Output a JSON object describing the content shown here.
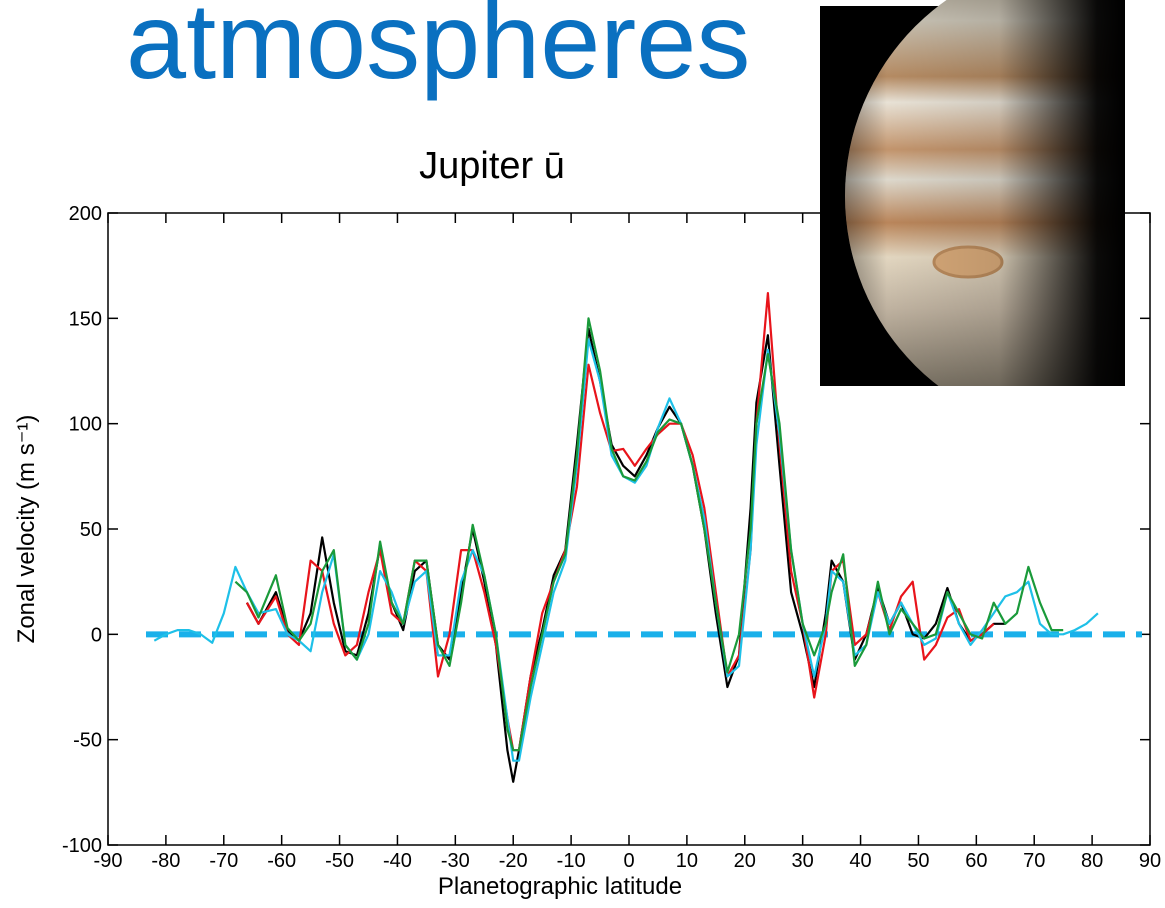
{
  "slide_title": "atmospheres",
  "chart_data": {
    "type": "line",
    "title": "Jupiter ū",
    "x_label": "Planetographic latitude",
    "y_label": "Zonal velocity (m s⁻¹)",
    "x": [
      -82,
      -80,
      -78,
      -76,
      -74,
      -72,
      -70,
      -68,
      -66,
      -64,
      -61,
      -59,
      -57,
      -55,
      -53,
      -51,
      -49,
      -47,
      -45,
      -43,
      -41,
      -39,
      -37,
      -35,
      -33,
      -31,
      -29,
      -27,
      -25,
      -23,
      -21,
      -20,
      -19,
      -17,
      -15,
      -13,
      -11,
      -9,
      -7,
      -5,
      -3,
      -1,
      1,
      3,
      5,
      7,
      9,
      11,
      13,
      15,
      17,
      19,
      21,
      22,
      24,
      26,
      28,
      30,
      32,
      34,
      35,
      37,
      39,
      41,
      43,
      45,
      47,
      49,
      51,
      53,
      55,
      57,
      59,
      61,
      63,
      65,
      67,
      69,
      71,
      73,
      75,
      77,
      79,
      81
    ],
    "series": [
      {
        "color": "#000000",
        "values": [
          null,
          null,
          null,
          null,
          null,
          null,
          null,
          null,
          15,
          5,
          20,
          2,
          -3,
          10,
          46,
          15,
          -8,
          -10,
          10,
          42,
          15,
          2,
          30,
          35,
          -5,
          -12,
          20,
          50,
          25,
          -5,
          -55,
          -70,
          -55,
          -20,
          2,
          28,
          40,
          90,
          145,
          120,
          90,
          80,
          75,
          85,
          98,
          108,
          100,
          80,
          50,
          10,
          -25,
          -10,
          60,
          110,
          142,
          80,
          20,
          0,
          -25,
          10,
          35,
          25,
          -12,
          0,
          22,
          5,
          15,
          0,
          -2,
          5,
          22,
          5,
          -3,
          0,
          5,
          5,
          null,
          null,
          null,
          null,
          null,
          null,
          null,
          null
        ]
      },
      {
        "color": "#e8141b",
        "values": [
          null,
          null,
          null,
          null,
          null,
          null,
          null,
          null,
          15,
          5,
          18,
          0,
          -5,
          35,
          30,
          5,
          -10,
          -5,
          20,
          40,
          10,
          5,
          35,
          30,
          -20,
          0,
          40,
          40,
          20,
          -5,
          -40,
          -55,
          -55,
          -20,
          10,
          25,
          40,
          70,
          128,
          105,
          87,
          88,
          80,
          88,
          95,
          100,
          100,
          85,
          60,
          20,
          -20,
          -10,
          40,
          100,
          162,
          90,
          30,
          5,
          -30,
          0,
          30,
          35,
          -5,
          0,
          20,
          2,
          18,
          25,
          -12,
          -5,
          8,
          12,
          -3,
          0,
          5,
          null,
          null,
          null,
          null,
          null,
          null,
          null,
          null,
          null
        ]
      },
      {
        "color": "#1ec0e8",
        "values": [
          -3,
          0,
          2,
          2,
          0,
          -4,
          10,
          32,
          20,
          10,
          12,
          0,
          -3,
          -8,
          20,
          38,
          -5,
          -12,
          0,
          30,
          20,
          5,
          25,
          30,
          -10,
          -10,
          25,
          40,
          28,
          0,
          -40,
          -60,
          -60,
          -30,
          -5,
          20,
          35,
          80,
          140,
          120,
          85,
          75,
          72,
          80,
          98,
          112,
          100,
          80,
          55,
          15,
          -20,
          -15,
          40,
          90,
          135,
          95,
          40,
          5,
          -20,
          5,
          30,
          25,
          -10,
          -5,
          20,
          5,
          15,
          5,
          -5,
          -2,
          20,
          5,
          -5,
          2,
          10,
          18,
          20,
          25,
          5,
          0,
          0,
          2,
          5,
          10
        ]
      },
      {
        "color": "#1a9a3a",
        "values": [
          null,
          null,
          null,
          null,
          null,
          null,
          null,
          25,
          20,
          8,
          28,
          3,
          -3,
          5,
          30,
          40,
          -5,
          -12,
          5,
          44,
          15,
          5,
          35,
          35,
          -5,
          -15,
          15,
          52,
          28,
          0,
          -45,
          -55,
          -55,
          -25,
          0,
          25,
          38,
          85,
          150,
          125,
          88,
          75,
          73,
          82,
          96,
          102,
          100,
          80,
          50,
          15,
          -18,
          0,
          50,
          100,
          133,
          100,
          40,
          5,
          -10,
          5,
          20,
          38,
          -15,
          -5,
          25,
          0,
          12,
          5,
          -2,
          0,
          20,
          10,
          0,
          -2,
          15,
          5,
          10,
          32,
          15,
          2,
          2,
          null,
          null,
          null
        ]
      }
    ],
    "reference_line": {
      "value": 0,
      "color": "#1ab0ea"
    },
    "xlim": [
      -90,
      90
    ],
    "xticks": [
      -90,
      -80,
      -70,
      -60,
      -50,
      -40,
      -30,
      -20,
      -10,
      0,
      10,
      20,
      30,
      40,
      50,
      60,
      70,
      80,
      90
    ],
    "ylim": [
      -100,
      200
    ],
    "yticks": [
      -100,
      -50,
      0,
      50,
      100,
      150,
      200
    ]
  }
}
